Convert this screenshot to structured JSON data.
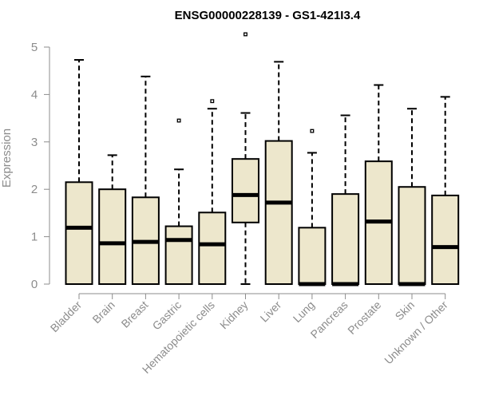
{
  "chart_data": {
    "type": "boxplot",
    "title": "ENSG00000228139 - GS1-421I3.4",
    "xlabel": "",
    "ylabel": "Expression",
    "ylim": [
      0,
      5
    ],
    "yticks": [
      0,
      1,
      2,
      3,
      4,
      5
    ],
    "grid": false,
    "box_fill": "#EDE7CC",
    "categories": [
      "Bladder",
      "Brain",
      "Breast",
      "Gastric",
      "Hematopoietic cells",
      "Kidney",
      "Liver",
      "Lung",
      "Pancreas",
      "Prostate",
      "Skin",
      "Unknown / Other"
    ],
    "boxes": [
      {
        "min": 0,
        "q1": 0,
        "median": 1.19,
        "q3": 2.15,
        "max": 4.73,
        "outliers": []
      },
      {
        "min": 0,
        "q1": 0,
        "median": 0.86,
        "q3": 2.0,
        "max": 2.72,
        "outliers": []
      },
      {
        "min": 0,
        "q1": 0,
        "median": 0.89,
        "q3": 1.83,
        "max": 4.38,
        "outliers": []
      },
      {
        "min": 0,
        "q1": 0,
        "median": 0.93,
        "q3": 1.22,
        "max": 2.42,
        "outliers": [
          3.45
        ]
      },
      {
        "min": 0,
        "q1": 0,
        "median": 0.84,
        "q3": 1.51,
        "max": 3.7,
        "outliers": [
          3.86
        ]
      },
      {
        "min": 0,
        "q1": 1.3,
        "median": 1.88,
        "q3": 2.64,
        "max": 3.61,
        "outliers": [
          5.27
        ]
      },
      {
        "min": 0,
        "q1": 0,
        "median": 1.72,
        "q3": 3.02,
        "max": 4.69,
        "outliers": []
      },
      {
        "min": 0,
        "q1": 0,
        "median": 0,
        "q3": 1.19,
        "max": 2.77,
        "outliers": [
          3.23
        ]
      },
      {
        "min": 0,
        "q1": 0,
        "median": 0,
        "q3": 1.9,
        "max": 3.56,
        "outliers": []
      },
      {
        "min": 0,
        "q1": 0,
        "median": 1.32,
        "q3": 2.59,
        "max": 4.2,
        "outliers": []
      },
      {
        "min": 0,
        "q1": 0,
        "median": 0,
        "q3": 2.05,
        "max": 3.7,
        "outliers": []
      },
      {
        "min": 0,
        "q1": 0,
        "median": 0.78,
        "q3": 1.87,
        "max": 3.95,
        "outliers": []
      }
    ]
  }
}
